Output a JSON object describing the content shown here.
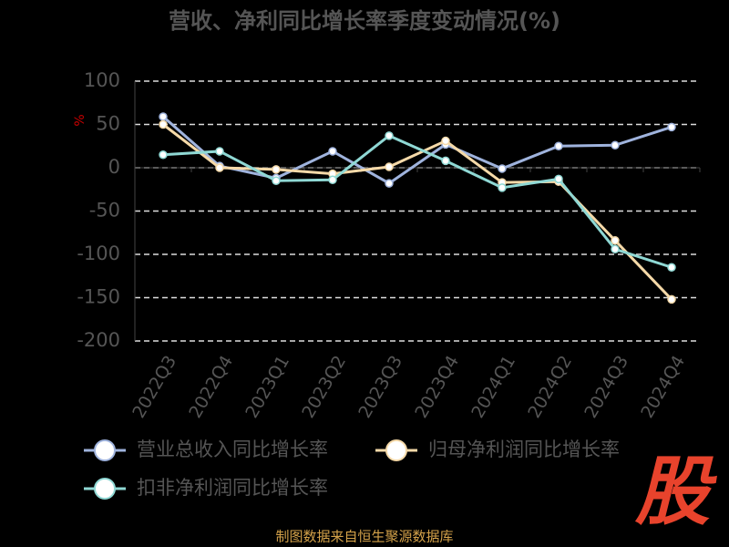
{
  "chart_data": {
    "type": "line",
    "title": "营收、净利同比增长率季度变动情况(%)",
    "y_label": "%",
    "categories": [
      "2022Q3",
      "2022Q4",
      "2023Q1",
      "2023Q2",
      "2023Q3",
      "2023Q4",
      "2024Q1",
      "2024Q2",
      "2024Q3",
      "2024Q4"
    ],
    "series": [
      {
        "name": "营业总收入同比增长率",
        "color": "#9fb3dd",
        "values": [
          59,
          2,
          -12,
          19,
          -18,
          27,
          -1,
          25,
          26,
          47
        ]
      },
      {
        "name": "归母净利润同比增长率",
        "color": "#f5d9a8",
        "values": [
          50,
          0,
          -2,
          -7,
          1,
          31,
          -17,
          -16,
          -84,
          -152
        ]
      },
      {
        "name": "扣非净利润同比增长率",
        "color": "#8fd8d4",
        "values": [
          15,
          19,
          -15,
          -14,
          37,
          8,
          -23,
          -13,
          -94,
          -115
        ]
      }
    ],
    "ylim": [
      -200,
      100
    ],
    "yticks": [
      -200,
      -150,
      -100,
      -50,
      0,
      50,
      100
    ],
    "grid": true,
    "source": "制图数据来自恒生聚源数据库",
    "logo": "股"
  }
}
